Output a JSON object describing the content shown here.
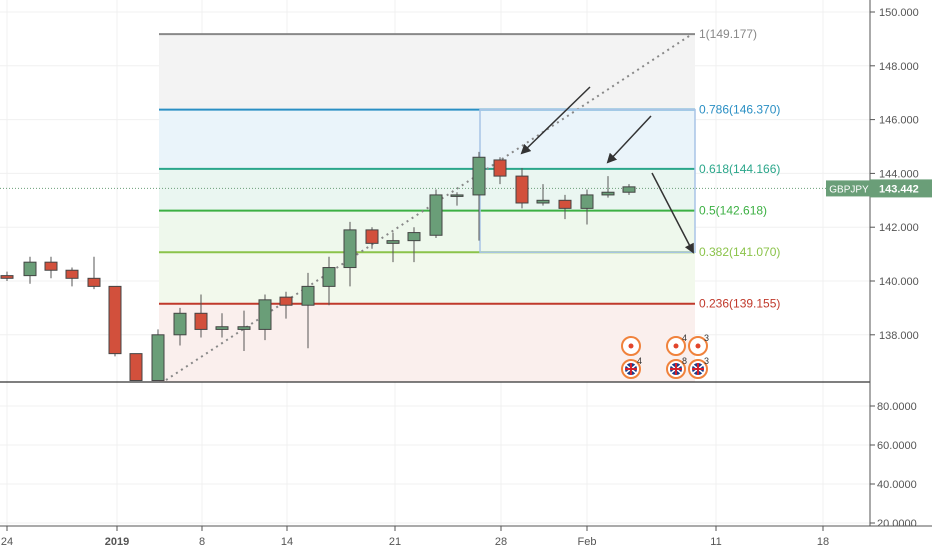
{
  "symbol": "GBPJPY",
  "price_label": "143.442",
  "price_axis": {
    "main_ticks": [
      "150.000",
      "148.000",
      "146.000",
      "144.000",
      "142.000",
      "140.000",
      "138.000"
    ],
    "main_tick_values": [
      150,
      148,
      146,
      144,
      142,
      140,
      138
    ],
    "lower_ticks": [
      "80.0000",
      "60.0000",
      "40.0000",
      "20.0000"
    ],
    "lower_tick_values": [
      80,
      60,
      40,
      20
    ]
  },
  "time_axis": {
    "labels": [
      "24",
      "2019",
      "8",
      "14",
      "21",
      "28",
      "Feb",
      "11",
      "18"
    ],
    "bold": [
      false,
      true,
      false,
      false,
      false,
      false,
      false,
      false,
      false
    ]
  },
  "fib_levels": [
    {
      "name": "1",
      "price": 149.177,
      "label": "1(149.177)",
      "color": "#888888"
    },
    {
      "name": "0.786",
      "price": 146.37,
      "label": "0.786(146.370)",
      "color": "#2a8fc4"
    },
    {
      "name": "0.618",
      "price": 144.166,
      "label": "0.618(144.166)",
      "color": "#2aa68a"
    },
    {
      "name": "0.5",
      "price": 142.618,
      "label": "0.5(142.618)",
      "color": "#3cb043"
    },
    {
      "name": "0.382",
      "price": 141.07,
      "label": "0.382(141.070)",
      "color": "#8bc34a"
    },
    {
      "name": "0.236",
      "price": 139.155,
      "label": "0.236(139.155)",
      "color": "#c0392b"
    }
  ],
  "event_badges": [
    {
      "icon": "target-icon",
      "count": ""
    },
    {
      "icon": "target-icon",
      "count": "4"
    },
    {
      "icon": "target-icon",
      "count": "3"
    },
    {
      "icon": "uk-flag-icon",
      "count": "4"
    },
    {
      "icon": "uk-flag-icon",
      "count": "8"
    },
    {
      "icon": "uk-flag-icon",
      "count": "3"
    }
  ],
  "colors": {
    "up": "#6a9e78",
    "down": "#d2503c",
    "grid": "#f0f0f0"
  },
  "chart_data": {
    "type": "candlestick",
    "candles": [
      {
        "x": 7,
        "o": 140.2,
        "h": 140.35,
        "l": 140.0,
        "c": 140.1
      },
      {
        "x": 30,
        "o": 140.2,
        "h": 140.9,
        "l": 139.9,
        "c": 140.7
      },
      {
        "x": 51,
        "o": 140.7,
        "h": 140.9,
        "l": 140.1,
        "c": 140.4
      },
      {
        "x": 72,
        "o": 140.4,
        "h": 140.5,
        "l": 139.8,
        "c": 140.1
      },
      {
        "x": 94,
        "o": 140.1,
        "h": 140.9,
        "l": 139.7,
        "c": 139.8
      },
      {
        "x": 115,
        "o": 139.8,
        "h": 139.8,
        "l": 137.2,
        "c": 137.3
      },
      {
        "x": 136,
        "o": 137.3,
        "h": 137.3,
        "l": 136.3,
        "c": 136.3
      },
      {
        "x": 158,
        "o": 136.3,
        "h": 138.2,
        "l": 136.3,
        "c": 138.0
      },
      {
        "x": 180,
        "o": 138.0,
        "h": 139.0,
        "l": 137.6,
        "c": 138.8
      },
      {
        "x": 201,
        "o": 138.8,
        "h": 139.5,
        "l": 137.9,
        "c": 138.2
      },
      {
        "x": 222,
        "o": 138.2,
        "h": 138.8,
        "l": 137.9,
        "c": 138.3
      },
      {
        "x": 244,
        "o": 138.2,
        "h": 138.9,
        "l": 137.4,
        "c": 138.3
      },
      {
        "x": 265,
        "o": 138.2,
        "h": 139.5,
        "l": 137.8,
        "c": 139.3
      },
      {
        "x": 286,
        "o": 139.4,
        "h": 139.6,
        "l": 138.6,
        "c": 139.1
      },
      {
        "x": 308,
        "o": 139.1,
        "h": 140.3,
        "l": 137.5,
        "c": 139.8
      },
      {
        "x": 329,
        "o": 139.8,
        "h": 140.9,
        "l": 139.1,
        "c": 140.5
      },
      {
        "x": 350,
        "o": 140.5,
        "h": 142.2,
        "l": 139.8,
        "c": 141.9
      },
      {
        "x": 372,
        "o": 141.9,
        "h": 142.0,
        "l": 141.2,
        "c": 141.4
      },
      {
        "x": 393,
        "o": 141.4,
        "h": 141.8,
        "l": 140.7,
        "c": 141.5
      },
      {
        "x": 414,
        "o": 141.5,
        "h": 142.0,
        "l": 140.7,
        "c": 141.8
      },
      {
        "x": 436,
        "o": 141.7,
        "h": 143.4,
        "l": 141.6,
        "c": 143.2
      },
      {
        "x": 457,
        "o": 143.2,
        "h": 143.3,
        "l": 142.8,
        "c": 143.2
      },
      {
        "x": 479,
        "o": 143.2,
        "h": 144.8,
        "l": 141.5,
        "c": 144.6
      },
      {
        "x": 500,
        "o": 144.5,
        "h": 144.6,
        "l": 143.6,
        "c": 143.9
      },
      {
        "x": 522,
        "o": 143.9,
        "h": 144.2,
        "l": 142.7,
        "c": 142.9
      },
      {
        "x": 543,
        "o": 142.9,
        "h": 143.6,
        "l": 142.8,
        "c": 143.0
      },
      {
        "x": 565,
        "o": 143.0,
        "h": 143.2,
        "l": 142.3,
        "c": 142.7
      },
      {
        "x": 587,
        "o": 142.7,
        "h": 143.4,
        "l": 142.1,
        "c": 143.2
      },
      {
        "x": 608,
        "o": 143.2,
        "h": 143.9,
        "l": 143.1,
        "c": 143.3
      },
      {
        "x": 629,
        "o": 143.3,
        "h": 143.6,
        "l": 143.2,
        "c": 143.5
      }
    ]
  }
}
